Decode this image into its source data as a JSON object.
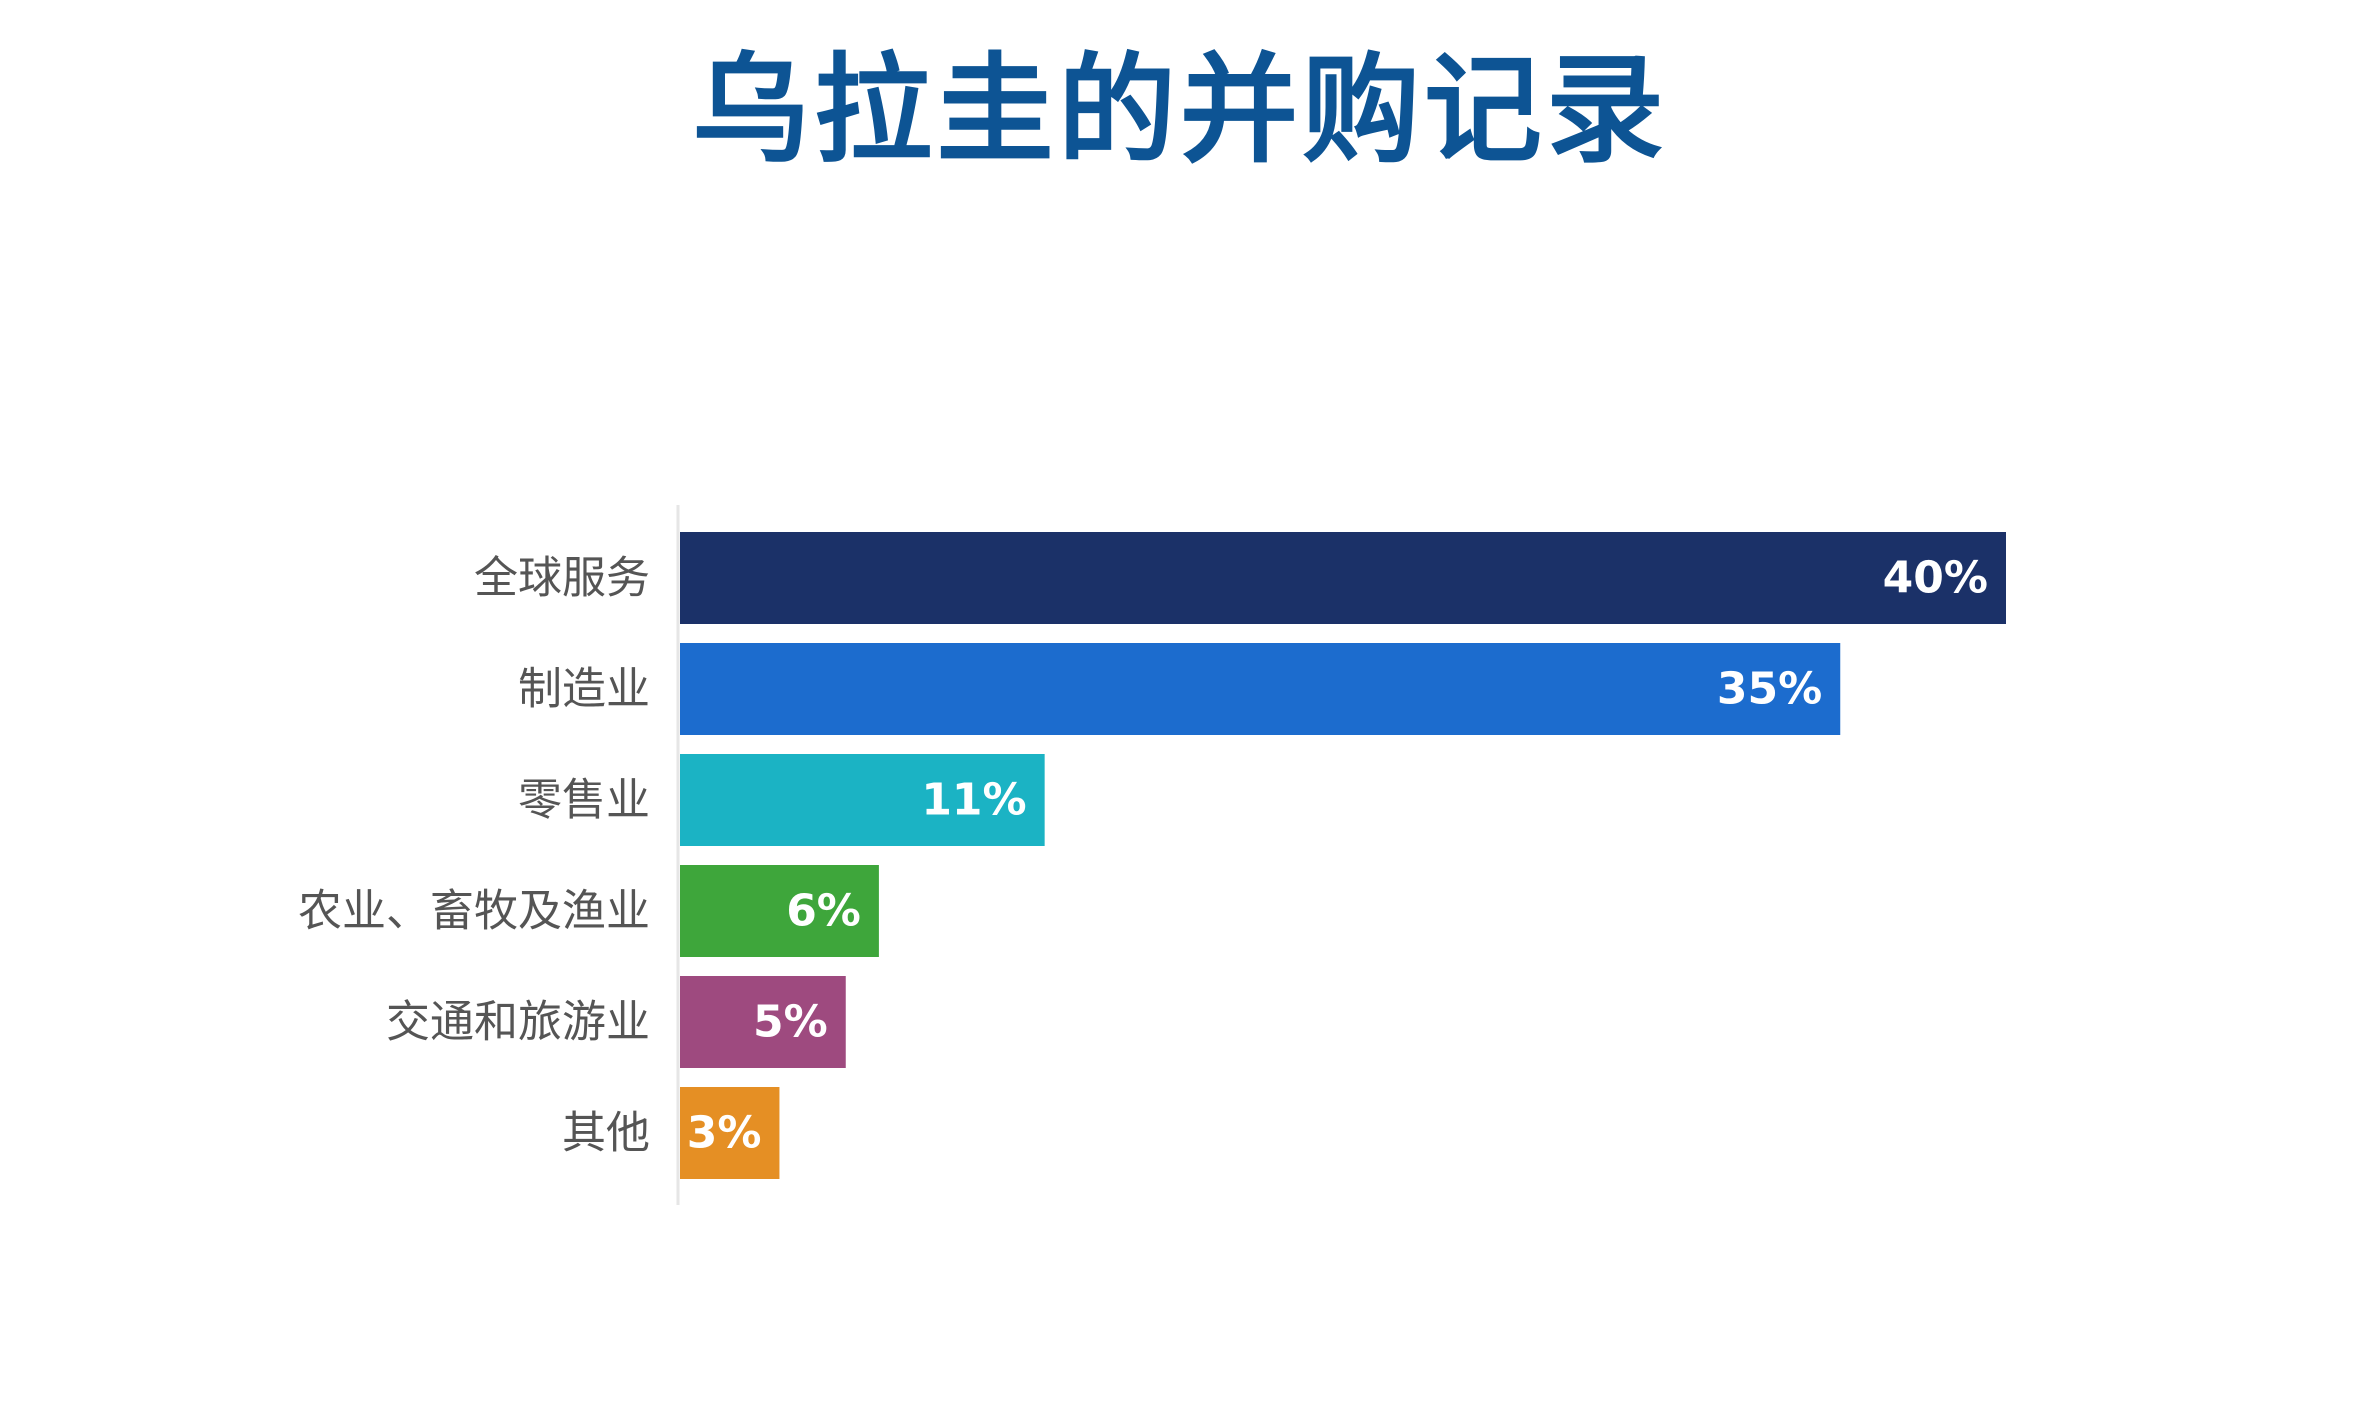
{
  "chart_data": {
    "type": "bar",
    "orientation": "horizontal",
    "title": "乌拉圭的并购记录",
    "categories": [
      "全球服务",
      "制造业",
      "零售业",
      "农业、畜牧及渔业",
      "交通和旅游业",
      "其他"
    ],
    "values": [
      40,
      35,
      11,
      6,
      5,
      3
    ],
    "value_labels": [
      "40%",
      "35%",
      "11%",
      "6%",
      "5%",
      "3%"
    ],
    "colors": [
      "#1b3168",
      "#1c6cce",
      "#1bb3c4",
      "#3ea63b",
      "#9e4a7f",
      "#e58f24"
    ],
    "xlim": [
      0,
      40
    ],
    "grid": false,
    "legend": "none"
  }
}
